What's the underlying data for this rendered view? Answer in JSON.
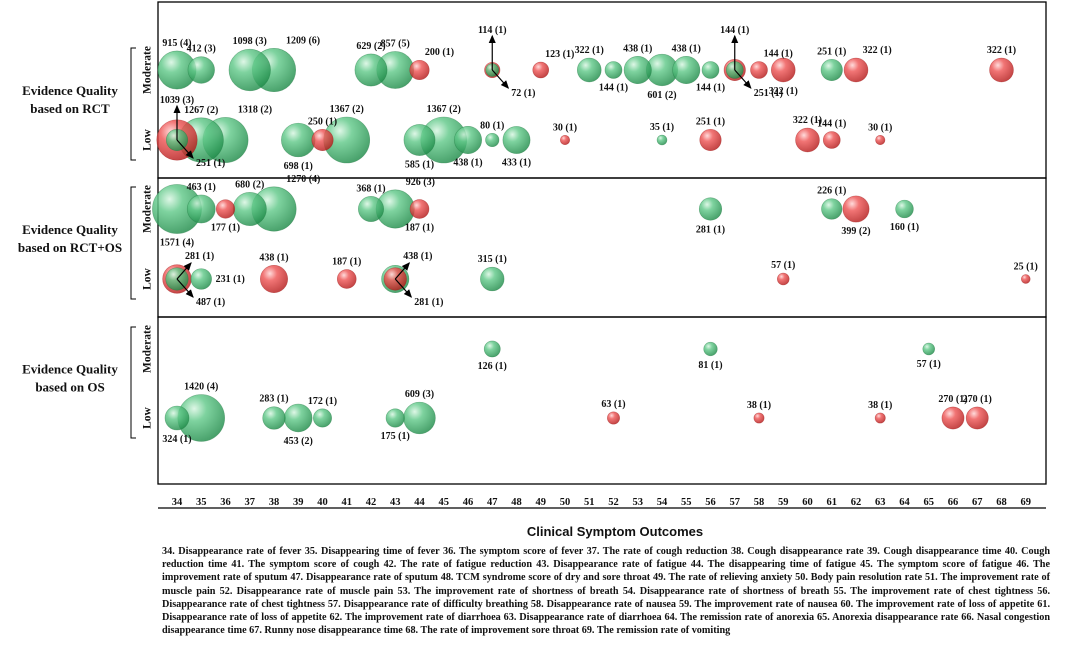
{
  "chart_data": {
    "type": "bubble",
    "xlabel": "Clinical Symptom Outcomes",
    "x_ticks": [
      34,
      35,
      36,
      37,
      38,
      39,
      40,
      41,
      42,
      43,
      44,
      45,
      46,
      47,
      48,
      49,
      50,
      51,
      52,
      53,
      54,
      55,
      56,
      57,
      58,
      59,
      60,
      61,
      62,
      63,
      64,
      65,
      66,
      67,
      68,
      69
    ],
    "groups": [
      {
        "label_line1": "Evidence  Quality",
        "label_line2": "based on RCT"
      },
      {
        "label_line1": "Evidence  Quality",
        "label_line2": "based on RCT+OS"
      },
      {
        "label_line1": "Evidence  Quality",
        "label_line2": "based on OS"
      }
    ],
    "row_labels": [
      "Moderate",
      "Low"
    ],
    "colors": {
      "green": "#3fb26c",
      "red": "#e2393a"
    },
    "bubbles": [
      {
        "g": 0,
        "r": 0,
        "x": 34,
        "n": 915,
        "k": 4,
        "c": "green",
        "lp": "up"
      },
      {
        "g": 0,
        "r": 0,
        "x": 35,
        "n": 412,
        "k": 3,
        "c": "green",
        "lp": "up"
      },
      {
        "g": 0,
        "r": 0,
        "x": 37,
        "n": 1098,
        "k": 3,
        "c": "green",
        "lp": "up"
      },
      {
        "g": 0,
        "r": 0,
        "x": 38,
        "n": 1209,
        "k": 6,
        "c": "green",
        "lp": "upright"
      },
      {
        "g": 0,
        "r": 0,
        "x": 42,
        "n": 629,
        "k": 2,
        "c": "green",
        "lp": "up"
      },
      {
        "g": 0,
        "r": 0,
        "x": 43,
        "n": 857,
        "k": 5,
        "c": "green",
        "lp": "up"
      },
      {
        "g": 0,
        "r": 0,
        "x": 44,
        "n": 200,
        "k": 1,
        "c": "red",
        "lp": "upright"
      },
      {
        "g": 0,
        "r": 0,
        "x": 47,
        "n": 114,
        "k": 1,
        "c": "red",
        "lp": "arrow-up"
      },
      {
        "g": 0,
        "r": 0,
        "x": 47,
        "n": 72,
        "k": 1,
        "c": "green",
        "lp": "arrow-downright"
      },
      {
        "g": 0,
        "r": 0,
        "x": 49,
        "n": 123,
        "k": 1,
        "c": "red",
        "lp": "upright"
      },
      {
        "g": 0,
        "r": 0,
        "x": 51,
        "n": 322,
        "k": 1,
        "c": "green",
        "lp": "up"
      },
      {
        "g": 0,
        "r": 0,
        "x": 52,
        "n": 144,
        "k": 1,
        "c": "green",
        "lp": "down"
      },
      {
        "g": 0,
        "r": 0,
        "x": 53,
        "n": 438,
        "k": 1,
        "c": "green",
        "lp": "up"
      },
      {
        "g": 0,
        "r": 0,
        "x": 54,
        "n": 601,
        "k": 2,
        "c": "green",
        "lp": "down"
      },
      {
        "g": 0,
        "r": 0,
        "x": 55,
        "n": 438,
        "k": 1,
        "c": "green",
        "lp": "up"
      },
      {
        "g": 0,
        "r": 0,
        "x": 56,
        "n": 144,
        "k": 1,
        "c": "green",
        "lp": "down"
      },
      {
        "g": 0,
        "r": 0,
        "x": 57,
        "n": 144,
        "k": 1,
        "c": "green",
        "lp": "arrow-up"
      },
      {
        "g": 0,
        "r": 0,
        "x": 57,
        "n": 251,
        "k": 1,
        "c": "red",
        "lp": "arrow-downright"
      },
      {
        "g": 0,
        "r": 0,
        "x": 58,
        "n": 144,
        "k": 1,
        "c": "red",
        "lp": "upright"
      },
      {
        "g": 0,
        "r": 0,
        "x": 59,
        "n": 322,
        "k": 1,
        "c": "red",
        "lp": "down"
      },
      {
        "g": 0,
        "r": 0,
        "x": 61,
        "n": 251,
        "k": 1,
        "c": "green",
        "lp": "up"
      },
      {
        "g": 0,
        "r": 0,
        "x": 62,
        "n": 322,
        "k": 1,
        "c": "red",
        "lp": "upright"
      },
      {
        "g": 0,
        "r": 0,
        "x": 68,
        "n": 322,
        "k": 1,
        "c": "red",
        "lp": "up"
      },
      {
        "g": 0,
        "r": 1,
        "x": 34,
        "n": 1039,
        "k": 3,
        "c": "red",
        "lp": "arrow-up"
      },
      {
        "g": 0,
        "r": 1,
        "x": 34,
        "n": 251,
        "k": 1,
        "c": "green",
        "lp": "arrow-downright"
      },
      {
        "g": 0,
        "r": 1,
        "x": 35,
        "n": 1267,
        "k": 2,
        "c": "green",
        "lp": "up"
      },
      {
        "g": 0,
        "r": 1,
        "x": 36,
        "n": 1318,
        "k": 2,
        "c": "green",
        "lp": "upright"
      },
      {
        "g": 0,
        "r": 1,
        "x": 39,
        "n": 698,
        "k": 1,
        "c": "green",
        "lp": "down"
      },
      {
        "g": 0,
        "r": 1,
        "x": 40,
        "n": 250,
        "k": 1,
        "c": "red",
        "lp": "up"
      },
      {
        "g": 0,
        "r": 1,
        "x": 41,
        "n": 1367,
        "k": 2,
        "c": "green",
        "lp": "up"
      },
      {
        "g": 0,
        "r": 1,
        "x": 44,
        "n": 585,
        "k": 1,
        "c": "green",
        "lp": "down"
      },
      {
        "g": 0,
        "r": 1,
        "x": 45,
        "n": 1367,
        "k": 2,
        "c": "green",
        "lp": "up"
      },
      {
        "g": 0,
        "r": 1,
        "x": 46,
        "n": 438,
        "k": 1,
        "c": "green",
        "lp": "down"
      },
      {
        "g": 0,
        "r": 1,
        "x": 47,
        "n": 80,
        "k": 1,
        "c": "green",
        "lp": "up"
      },
      {
        "g": 0,
        "r": 1,
        "x": 48,
        "n": 433,
        "k": 1,
        "c": "green",
        "lp": "down"
      },
      {
        "g": 0,
        "r": 1,
        "x": 50,
        "n": 30,
        "k": 1,
        "c": "red",
        "lp": "up"
      },
      {
        "g": 0,
        "r": 1,
        "x": 54,
        "n": 35,
        "k": 1,
        "c": "green",
        "lp": "up"
      },
      {
        "g": 0,
        "r": 1,
        "x": 56,
        "n": 251,
        "k": 1,
        "c": "red",
        "lp": "up"
      },
      {
        "g": 0,
        "r": 1,
        "x": 60,
        "n": 322,
        "k": 1,
        "c": "red",
        "lp": "up"
      },
      {
        "g": 0,
        "r": 1,
        "x": 61,
        "n": 144,
        "k": 1,
        "c": "red",
        "lp": "up"
      },
      {
        "g": 0,
        "r": 1,
        "x": 63,
        "n": 30,
        "k": 1,
        "c": "red",
        "lp": "up"
      },
      {
        "g": 1,
        "r": 0,
        "x": 34,
        "n": 1571,
        "k": 4,
        "c": "green",
        "lp": "down"
      },
      {
        "g": 1,
        "r": 0,
        "x": 35,
        "n": 463,
        "k": 1,
        "c": "green",
        "lp": "up"
      },
      {
        "g": 1,
        "r": 0,
        "x": 36,
        "n": 177,
        "k": 1,
        "c": "red",
        "lp": "down"
      },
      {
        "g": 1,
        "r": 0,
        "x": 37,
        "n": 680,
        "k": 2,
        "c": "green",
        "lp": "up"
      },
      {
        "g": 1,
        "r": 0,
        "x": 38,
        "n": 1270,
        "k": 4,
        "c": "green",
        "lp": "upright"
      },
      {
        "g": 1,
        "r": 0,
        "x": 42,
        "n": 368,
        "k": 1,
        "c": "green",
        "lp": "up"
      },
      {
        "g": 1,
        "r": 0,
        "x": 43,
        "n": 926,
        "k": 3,
        "c": "green",
        "lp": "upright"
      },
      {
        "g": 1,
        "r": 0,
        "x": 44,
        "n": 187,
        "k": 1,
        "c": "red",
        "lp": "down"
      },
      {
        "g": 1,
        "r": 0,
        "x": 56,
        "n": 281,
        "k": 1,
        "c": "green",
        "lp": "down"
      },
      {
        "g": 1,
        "r": 0,
        "x": 61,
        "n": 226,
        "k": 1,
        "c": "green",
        "lp": "up"
      },
      {
        "g": 1,
        "r": 0,
        "x": 62,
        "n": 399,
        "k": 2,
        "c": "red",
        "lp": "down"
      },
      {
        "g": 1,
        "r": 0,
        "x": 64,
        "n": 160,
        "k": 1,
        "c": "green",
        "lp": "down"
      },
      {
        "g": 1,
        "r": 1,
        "x": 34,
        "n": 281,
        "k": 1,
        "c": "green",
        "lp": "arrow-upright"
      },
      {
        "g": 1,
        "r": 1,
        "x": 34,
        "n": 487,
        "k": 1,
        "c": "red",
        "lp": "arrow-downright"
      },
      {
        "g": 1,
        "r": 1,
        "x": 35,
        "n": 231,
        "k": 1,
        "c": "green",
        "lp": "right"
      },
      {
        "g": 1,
        "r": 1,
        "x": 38,
        "n": 438,
        "k": 1,
        "c": "red",
        "lp": "up"
      },
      {
        "g": 1,
        "r": 1,
        "x": 41,
        "n": 187,
        "k": 1,
        "c": "red",
        "lp": "up"
      },
      {
        "g": 1,
        "r": 1,
        "x": 43,
        "n": 438,
        "k": 1,
        "c": "green",
        "lp": "arrow-upright"
      },
      {
        "g": 1,
        "r": 1,
        "x": 43,
        "n": 281,
        "k": 1,
        "c": "red",
        "lp": "arrow-downright"
      },
      {
        "g": 1,
        "r": 1,
        "x": 47,
        "n": 315,
        "k": 1,
        "c": "green",
        "lp": "up"
      },
      {
        "g": 1,
        "r": 1,
        "x": 59,
        "n": 57,
        "k": 1,
        "c": "red",
        "lp": "up"
      },
      {
        "g": 1,
        "r": 1,
        "x": 69,
        "n": 25,
        "k": 1,
        "c": "red",
        "lp": "up"
      },
      {
        "g": 2,
        "r": 0,
        "x": 47,
        "n": 126,
        "k": 1,
        "c": "green",
        "lp": "down"
      },
      {
        "g": 2,
        "r": 0,
        "x": 56,
        "n": 81,
        "k": 1,
        "c": "green",
        "lp": "down"
      },
      {
        "g": 2,
        "r": 0,
        "x": 65,
        "n": 57,
        "k": 1,
        "c": "green",
        "lp": "down"
      },
      {
        "g": 2,
        "r": 1,
        "x": 34,
        "n": 324,
        "k": 1,
        "c": "green",
        "lp": "down"
      },
      {
        "g": 2,
        "r": 1,
        "x": 35,
        "n": 1420,
        "k": 4,
        "c": "green",
        "lp": "up"
      },
      {
        "g": 2,
        "r": 1,
        "x": 38,
        "n": 283,
        "k": 1,
        "c": "green",
        "lp": "up"
      },
      {
        "g": 2,
        "r": 1,
        "x": 39,
        "n": 453,
        "k": 2,
        "c": "green",
        "lp": "down"
      },
      {
        "g": 2,
        "r": 1,
        "x": 40,
        "n": 172,
        "k": 1,
        "c": "green",
        "lp": "up"
      },
      {
        "g": 2,
        "r": 1,
        "x": 43,
        "n": 175,
        "k": 1,
        "c": "green",
        "lp": "down"
      },
      {
        "g": 2,
        "r": 1,
        "x": 44,
        "n": 609,
        "k": 3,
        "c": "green",
        "lp": "up"
      },
      {
        "g": 2,
        "r": 1,
        "x": 52,
        "n": 63,
        "k": 1,
        "c": "red",
        "lp": "up"
      },
      {
        "g": 2,
        "r": 1,
        "x": 58,
        "n": 38,
        "k": 1,
        "c": "red",
        "lp": "up"
      },
      {
        "g": 2,
        "r": 1,
        "x": 63,
        "n": 38,
        "k": 1,
        "c": "red",
        "lp": "up"
      },
      {
        "g": 2,
        "r": 1,
        "x": 66,
        "n": 270,
        "k": 1,
        "c": "red",
        "lp": "up"
      },
      {
        "g": 2,
        "r": 1,
        "x": 67,
        "n": 270,
        "k": 1,
        "c": "red",
        "lp": "up"
      }
    ],
    "legend_text": "34. Disappearance rate of fever 35. Disappearing time of fever 36. The symptom score of fever 37. The rate of cough reduction 38. Cough disappearance rate 39. Cough disappearance time 40. Cough reduction time 41. The symptom score of cough 42. The rate of fatigue reduction 43. Disappearance rate of fatigue 44. The disappearing time of fatigue 45. The symptom score of fatigue 46. The improvement rate of sputum 47. Disappearance rate of sputum 48. TCM syndrome score of dry and sore throat 49. The rate of relieving anxiety 50. Body pain resolution rate 51. The improvement rate of muscle pain 52. Disappearance rate of muscle pain 53. The improvement rate of shortness of breath 54. Disappearance rate of shortness of breath 55. The improvement rate of chest tightness 56. Disappearance rate of chest tightness 57. Disappearance rate of difficulty breathing 58. Disappearance rate of nausea 59. The improvement rate of nausea 60. The improvement rate of loss of appetite 61. Disappearance rate of loss of appetite 62. The improvement rate of diarrhoea 63. Disappearance rate of diarrhoea 64. The remission rate of anorexia 65. Anorexia disappearance rate 66. Nasal congestion disappearance time 67. Runny nose disappearance time 68. The rate of improvement sore throat 69. The remission rate of vomiting"
  }
}
